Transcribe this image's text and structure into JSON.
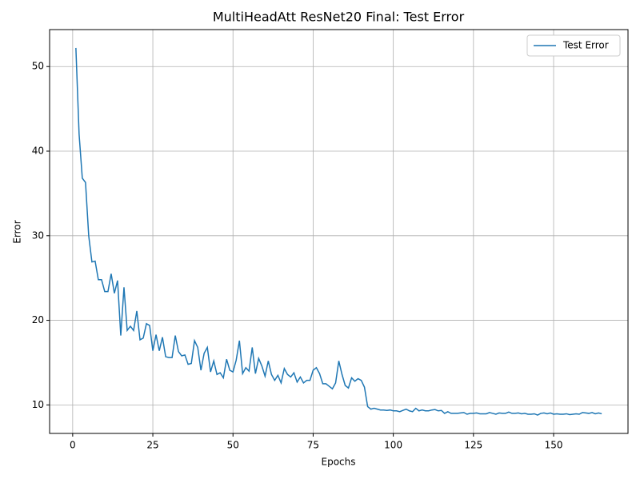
{
  "chart_data": {
    "type": "line",
    "title": "MultiHeadAtt ResNet20 Final: Test Error",
    "x_label": "Epochs",
    "y_label": "Error",
    "x": [
      1,
      2,
      3,
      4,
      5,
      6,
      7,
      8,
      9,
      10,
      11,
      12,
      13,
      14,
      15,
      16,
      17,
      18,
      19,
      20,
      21,
      22,
      23,
      24,
      25,
      26,
      27,
      28,
      29,
      30,
      31,
      32,
      33,
      34,
      35,
      36,
      37,
      38,
      39,
      40,
      41,
      42,
      43,
      44,
      45,
      46,
      47,
      48,
      49,
      50,
      51,
      52,
      53,
      54,
      55,
      56,
      57,
      58,
      59,
      60,
      61,
      62,
      63,
      64,
      65,
      66,
      67,
      68,
      69,
      70,
      71,
      72,
      73,
      74,
      75,
      76,
      77,
      78,
      79,
      80,
      81,
      82,
      83,
      84,
      85,
      86,
      87,
      88,
      89,
      90,
      91,
      92,
      93,
      94,
      95,
      96,
      97,
      98,
      99,
      100,
      101,
      102,
      103,
      104,
      105,
      106,
      107,
      108,
      109,
      110,
      111,
      112,
      113,
      114,
      115,
      116,
      117,
      118,
      119,
      120,
      121,
      122,
      123,
      124,
      125,
      126,
      127,
      128,
      129,
      130,
      131,
      132,
      133,
      134,
      135,
      136,
      137,
      138,
      139,
      140,
      141,
      142,
      143,
      144,
      145,
      146,
      147,
      148,
      149,
      150,
      151,
      152,
      153,
      154,
      155,
      156,
      157,
      158,
      159,
      160,
      161,
      162,
      163,
      164,
      165
    ],
    "series": [
      {
        "name": "Test Error",
        "color": "#1f77b4",
        "values": [
          52.2,
          42,
          36.8,
          36.3,
          30,
          26.9,
          27,
          24.8,
          24.8,
          23.4,
          23.4,
          25.5,
          23.2,
          24.7,
          18.2,
          23.9,
          18.8,
          19.3,
          18.8,
          21.1,
          17.7,
          17.9,
          19.6,
          19.4,
          16.4,
          18.3,
          16.4,
          18,
          15.7,
          15.6,
          15.6,
          18.2,
          16.3,
          15.8,
          15.9,
          14.8,
          14.9,
          17.6,
          16.8,
          14.1,
          16.1,
          16.8,
          13.9,
          15.2,
          13.6,
          13.8,
          13.2,
          15.4,
          14.1,
          13.9,
          15.3,
          17.6,
          13.7,
          14.4,
          14,
          16.8,
          13.7,
          15.5,
          14.6,
          13.4,
          15.2,
          13.6,
          12.9,
          13.5,
          12.6,
          14.3,
          13.6,
          13.3,
          13.8,
          12.7,
          13.3,
          12.6,
          12.9,
          12.9,
          14.1,
          14.4,
          13.7,
          12.5,
          12.5,
          12.2,
          11.9,
          12.6,
          15.2,
          13.6,
          12.3,
          12,
          13.2,
          12.8,
          13.1,
          12.9,
          12.1,
          9.8,
          9.5,
          9.6,
          9.5,
          9.4,
          9.4,
          9.35,
          9.4,
          9.3,
          9.3,
          9.2,
          9.35,
          9.5,
          9.3,
          9.2,
          9.6,
          9.3,
          9.4,
          9.3,
          9.3,
          9.4,
          9.45,
          9.3,
          9.35,
          9.0,
          9.2,
          9.0,
          9.0,
          9.0,
          9.05,
          9.1,
          8.9,
          9.0,
          9.0,
          9.05,
          8.95,
          8.95,
          8.95,
          9.1,
          9.0,
          8.9,
          9.05,
          9.0,
          9.0,
          9.15,
          9.0,
          9.0,
          9.05,
          8.95,
          9.0,
          8.9,
          8.9,
          8.95,
          8.8,
          9.0,
          9.05,
          8.95,
          9.05,
          8.9,
          8.95,
          8.9,
          8.9,
          8.95,
          8.85,
          8.9,
          8.95,
          8.9,
          9.1,
          9.05,
          9.0,
          9.1,
          8.95,
          9.05,
          8.95
        ]
      }
    ],
    "xlim": [
      -7.2,
      173.2
    ],
    "ylim": [
      6.63,
      54.37
    ],
    "xticks": [
      0,
      25,
      50,
      75,
      100,
      125,
      150
    ],
    "yticks": [
      10,
      20,
      30,
      40,
      50
    ],
    "grid": true,
    "legend": "upper right"
  }
}
